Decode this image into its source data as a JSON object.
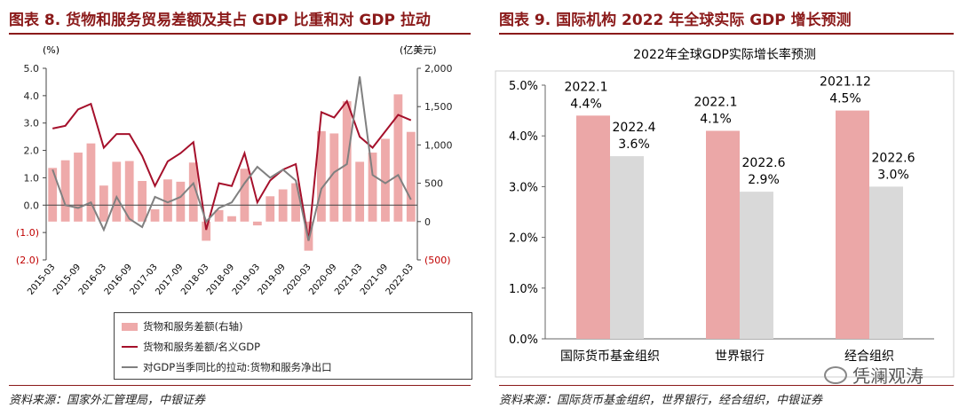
{
  "left": {
    "title": "图表 8. 货物和服务贸易差额及其占 GDP 比重和对 GDP 拉动",
    "source": "资料来源：国家外汇管理局，中银证券",
    "legend": [
      "货物和服务差额(右轴)",
      "货物和服务差额/名义GDP",
      "对GDP当季同比的拉动:货物和服务净出口"
    ]
  },
  "right": {
    "title": "图表 9. 国际机构 2022 年全球实际 GDP 增长预测",
    "source": "资料来源：国际货币基金组织，世界银行，经合组织，中银证券"
  },
  "watermark": {
    "text": "凭澜观涛",
    "icon": "wechat-icon"
  },
  "chart_data": [
    {
      "type": "bar+line",
      "x_labels": [
        "2015-03",
        "2015-09",
        "2016-03",
        "2016-09",
        "2017-03",
        "2017-09",
        "2018-03",
        "2018-09",
        "2019-03",
        "2019-09",
        "2020-03",
        "2020-09",
        "2021-03",
        "2021-09",
        "2022-03"
      ],
      "quarters": [
        "2015-03",
        "2015-06",
        "2015-09",
        "2015-12",
        "2016-03",
        "2016-06",
        "2016-09",
        "2016-12",
        "2017-03",
        "2017-06",
        "2017-09",
        "2017-12",
        "2018-03",
        "2018-06",
        "2018-09",
        "2018-12",
        "2019-03",
        "2019-06",
        "2019-09",
        "2019-12",
        "2020-03",
        "2020-06",
        "2020-09",
        "2020-12",
        "2021-03",
        "2021-06",
        "2021-09",
        "2021-12",
        "2022-03"
      ],
      "y_left": {
        "label": "(%)",
        "ticks": [
          "5.0",
          "4.0",
          "3.0",
          "2.0",
          "1.0",
          "0.0",
          "(1.0)",
          "(2.0)"
        ],
        "lim": [
          -2,
          5
        ]
      },
      "y_right": {
        "label": "(亿美元)",
        "ticks": [
          "2,000",
          "1,500",
          "1,000",
          "500",
          "0",
          "(500)"
        ],
        "lim": [
          -500,
          2000
        ]
      },
      "series": [
        {
          "name": "货物和服务差额(右轴)",
          "axis": "right",
          "kind": "bar",
          "color": "#eeaaaa",
          "values": [
            700,
            800,
            900,
            1020,
            470,
            780,
            790,
            530,
            160,
            550,
            520,
            770,
            -250,
            150,
            70,
            690,
            -50,
            330,
            420,
            500,
            -380,
            1180,
            1150,
            1570,
            780,
            900,
            1080,
            1660,
            1170
          ]
        },
        {
          "name": "货物和服务差额/名义GDP",
          "axis": "left",
          "kind": "line",
          "color": "#a5102b",
          "values": [
            2.8,
            2.9,
            3.5,
            3.7,
            2.1,
            2.6,
            2.6,
            1.8,
            0.7,
            1.6,
            1.9,
            2.3,
            -0.9,
            0.8,
            0.7,
            1.9,
            0.1,
            0.9,
            1.3,
            1.5,
            -1.3,
            3.4,
            3.2,
            3.8,
            2.5,
            2.1,
            2.7,
            3.3,
            3.1
          ]
        },
        {
          "name": "对GDP当季同比的拉动:货物和服务净出口",
          "axis": "left",
          "kind": "line",
          "color": "#808080",
          "values": [
            1.3,
            0.0,
            -0.1,
            0.1,
            -0.9,
            0.3,
            -0.5,
            -0.8,
            0.3,
            0.1,
            0.3,
            0.8,
            -0.6,
            -0.1,
            0.1,
            0.8,
            1.4,
            1.0,
            1.3,
            0.9,
            -1.3,
            0.6,
            1.2,
            1.5,
            4.7,
            1.1,
            0.8,
            1.1,
            0.2
          ]
        }
      ]
    },
    {
      "type": "bar",
      "title": "2022年全球GDP实际增长率预测",
      "categories": [
        "国际货币基金组织",
        "世界银行",
        "经合组织"
      ],
      "y_ticks": [
        "5.0%",
        "4.0%",
        "3.0%",
        "2.0%",
        "1.0%",
        "0.0%"
      ],
      "ylim": [
        0,
        5
      ],
      "series": [
        {
          "color": "#eba7a7",
          "values": [
            4.4,
            4.1,
            4.5
          ],
          "dates": [
            "2022.1",
            "2022.1",
            "2021.12"
          ],
          "labels": [
            "4.4%",
            "4.1%",
            "4.5%"
          ]
        },
        {
          "color": "#d9d9d9",
          "values": [
            3.6,
            2.9,
            3.0
          ],
          "dates": [
            "2022.4",
            "2022.6",
            "2022.6"
          ],
          "labels": [
            "3.6%",
            "2.9%",
            "3.0%"
          ]
        }
      ]
    }
  ]
}
